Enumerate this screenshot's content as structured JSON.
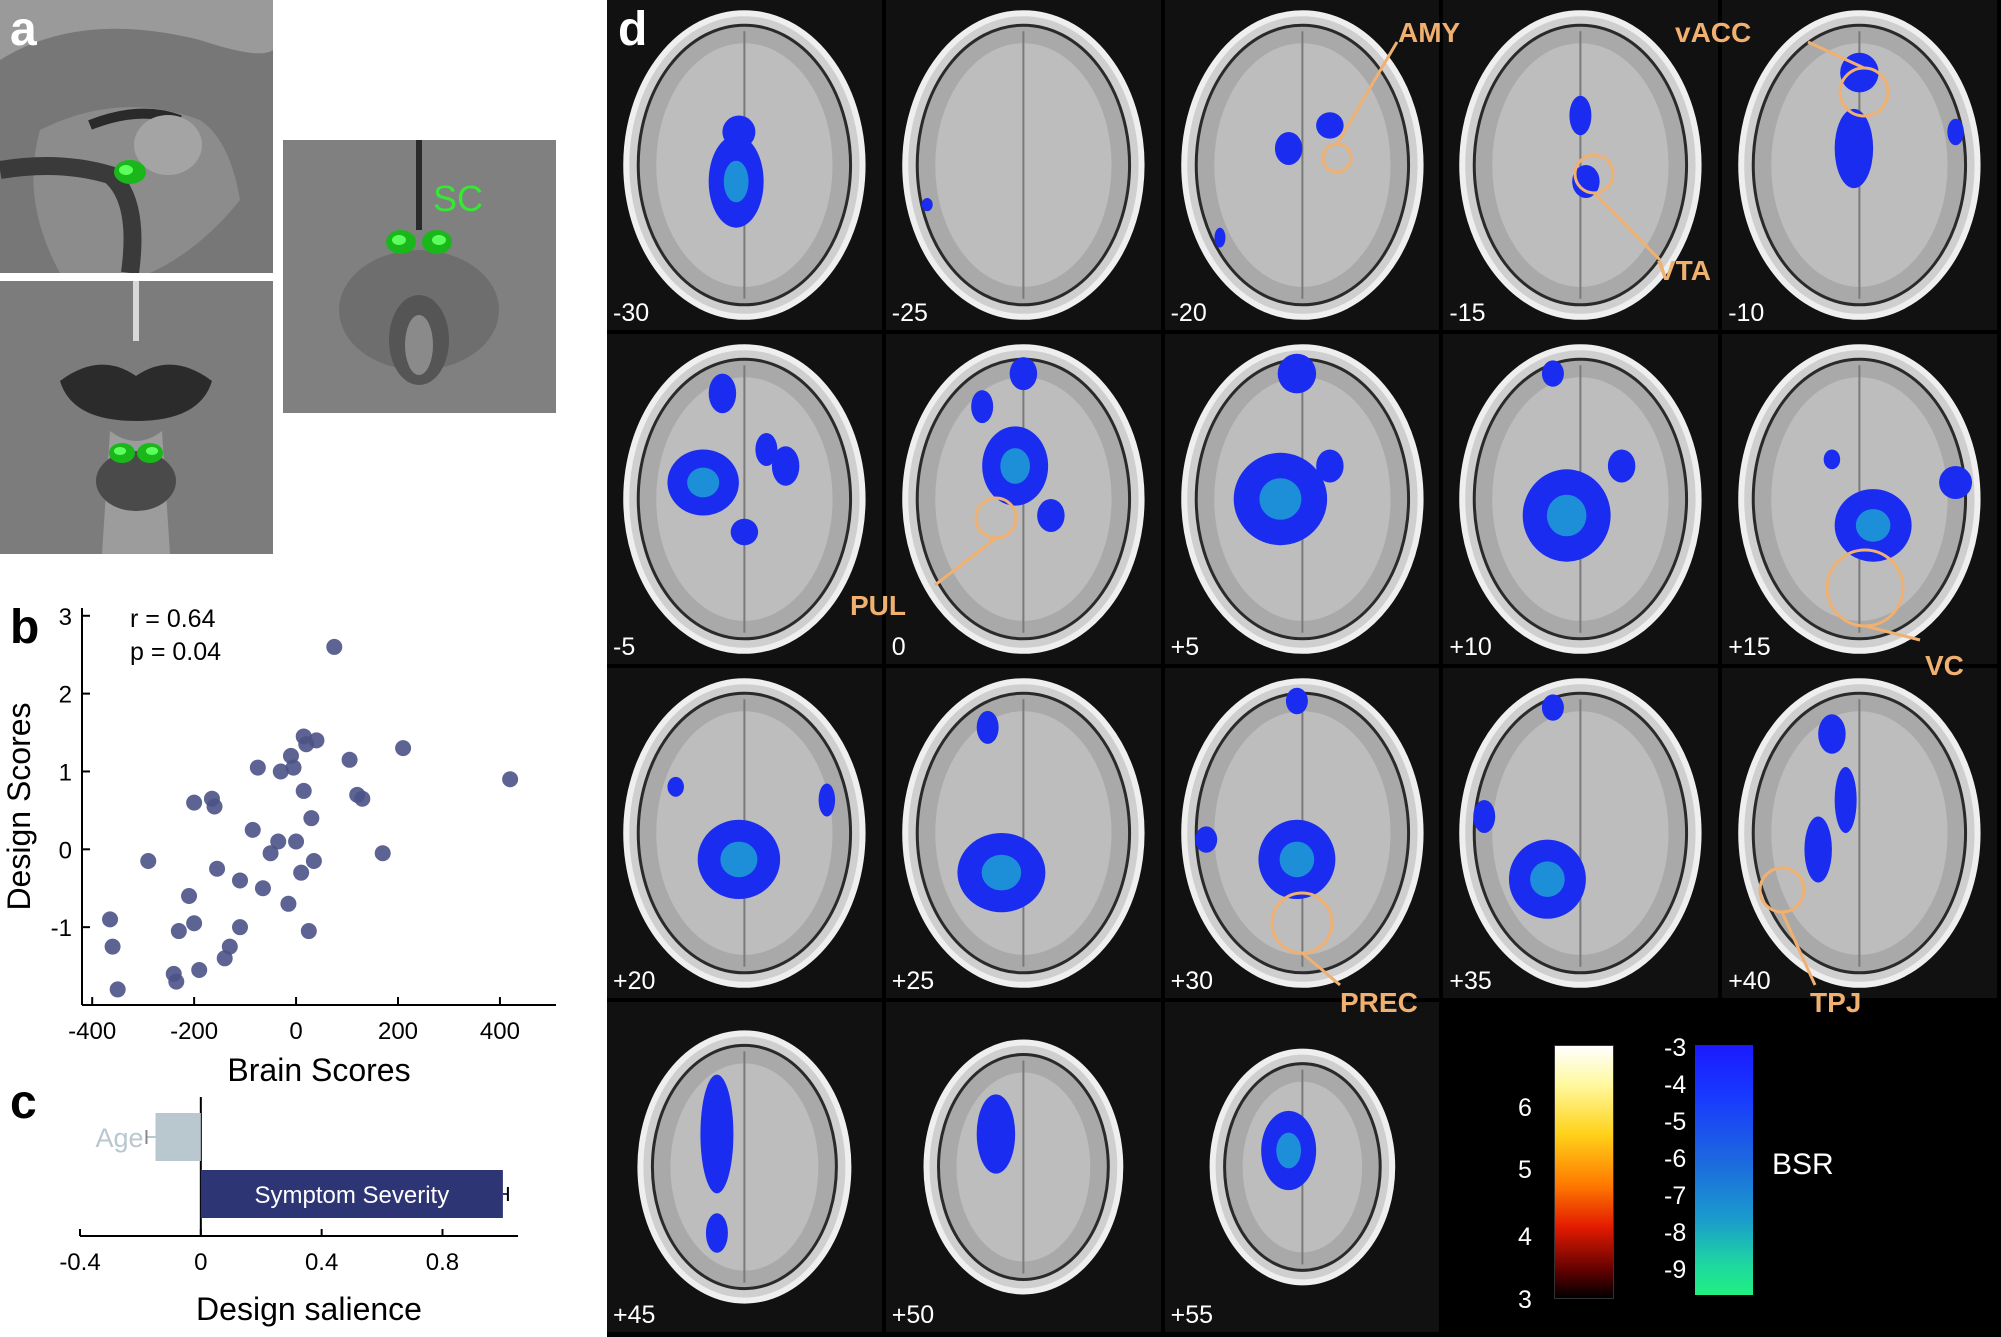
{
  "panel_a": {
    "letter": "a",
    "label_sc": "SC"
  },
  "panel_b": {
    "letter": "b",
    "stat_r": "r = 0.64",
    "stat_p": "p = 0.04"
  },
  "panel_c": {
    "letter": "c"
  },
  "panel_d": {
    "letter": "d",
    "slices": [
      "-30",
      "-25",
      "-20",
      "-15",
      "-10",
      "-5",
      "0",
      "+5",
      "+10",
      "+15",
      "+20",
      "+25",
      "+30",
      "+35",
      "+40",
      "+45",
      "+50",
      "+55"
    ],
    "rois": [
      "AMY",
      "vACC",
      "VTA",
      "PUL",
      "VC",
      "PREC",
      "TPJ"
    ],
    "colorbar_pos_ticks": [
      "6",
      "5",
      "4",
      "3"
    ],
    "colorbar_neg_ticks": [
      "-3",
      "-4",
      "-5",
      "-6",
      "-7",
      "-8",
      "-9"
    ],
    "colorbar_label": "BSR"
  },
  "chart_data": [
    {
      "type": "scatter",
      "xlabel": "Brain Scores",
      "ylabel": "Design Scores",
      "xlim": [
        -420,
        510
      ],
      "ylim": [
        -2,
        3.1
      ],
      "xticks": [
        "-400",
        "-200",
        "0",
        "200",
        "400"
      ],
      "yticks": [
        "3",
        "2",
        "1",
        "0",
        "-1"
      ],
      "annotations": [
        "r = 0.64",
        "p = 0.04"
      ],
      "x": [
        -360,
        -365,
        -350,
        -290,
        -230,
        -210,
        -240,
        -235,
        -200,
        -200,
        -190,
        -165,
        -160,
        -155,
        -140,
        -130,
        -110,
        -110,
        -85,
        -75,
        -65,
        -50,
        -35,
        -30,
        -15,
        -10,
        -5,
        0,
        10,
        15,
        15,
        20,
        25,
        30,
        35,
        40,
        75,
        105,
        120,
        130,
        170,
        210,
        420
      ],
      "y": [
        -1.25,
        -0.9,
        -1.8,
        -0.15,
        -1.05,
        -0.6,
        -1.6,
        -1.7,
        0.6,
        -0.95,
        -1.55,
        0.65,
        0.55,
        -0.25,
        -1.4,
        -1.25,
        -1.0,
        -0.4,
        0.25,
        1.05,
        -0.5,
        -0.05,
        0.1,
        1.0,
        -0.7,
        1.2,
        1.05,
        0.1,
        -0.3,
        0.75,
        1.45,
        1.35,
        -1.05,
        0.4,
        -0.15,
        1.4,
        2.6,
        1.15,
        0.7,
        0.65,
        -0.05,
        1.3,
        0.9
      ]
    },
    {
      "type": "bar",
      "orientation": "horizontal",
      "xlabel": "Design salience",
      "xlim": [
        -0.4,
        1.05
      ],
      "xticks": [
        "-0.4",
        "0",
        "0.4",
        "0.8"
      ],
      "categories": [
        "Age",
        "Symptom Severity"
      ],
      "values": [
        -0.15,
        1.0
      ],
      "errors": [
        0.03,
        0.015
      ],
      "colors": [
        "#b9c7cf",
        "#2e3575"
      ]
    }
  ]
}
